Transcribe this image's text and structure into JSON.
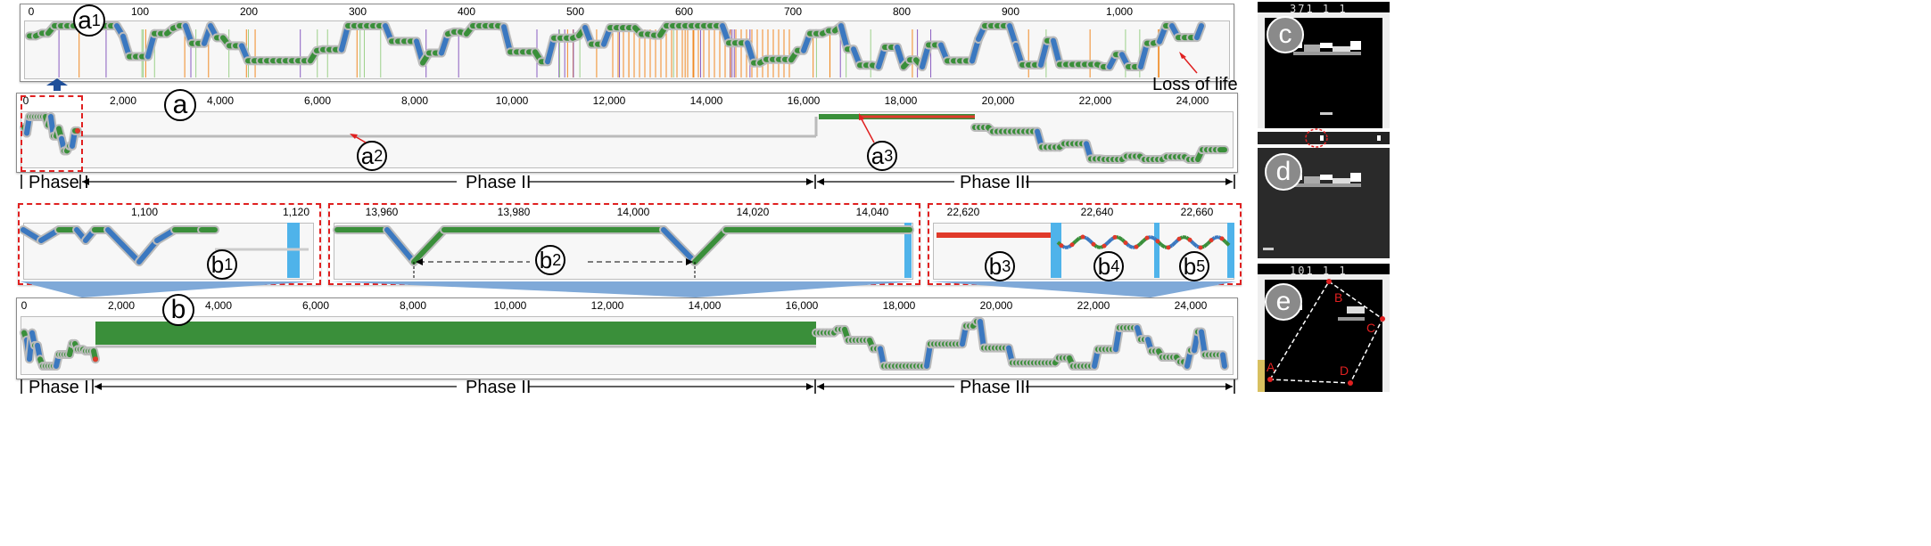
{
  "panel_a1": {
    "label": "a",
    "sub": "1",
    "ticks": [
      "0",
      "100",
      "200",
      "300",
      "400",
      "500",
      "600",
      "700",
      "800",
      "900",
      "1,000"
    ],
    "annotation": "Loss of life"
  },
  "panel_a": {
    "label": "a",
    "ticks": [
      "0",
      "2,000",
      "4,000",
      "6,000",
      "8,000",
      "10,000",
      "12,000",
      "14,000",
      "16,000",
      "18,000",
      "20,000",
      "22,000",
      "24,000"
    ],
    "a2": {
      "label": "a",
      "sub": "2"
    },
    "a3": {
      "label": "a",
      "sub": "3"
    }
  },
  "phases_top": {
    "phase1": "Phase I",
    "phase2": "Phase II",
    "phase3": "Phase III"
  },
  "panel_b1": {
    "label": "b",
    "sub": "1",
    "ticks": [
      "1,100",
      "1,120"
    ]
  },
  "panel_b2": {
    "label": "b",
    "sub": "2",
    "ticks": [
      "13,960",
      "13,980",
      "14,000",
      "14,020",
      "14,040"
    ]
  },
  "panel_b345": {
    "ticks": [
      "22,620",
      "22,640",
      "22,660"
    ],
    "b3": {
      "label": "b",
      "sub": "3"
    },
    "b4": {
      "label": "b",
      "sub": "4"
    },
    "b5": {
      "label": "b",
      "sub": "5"
    }
  },
  "panel_b": {
    "label": "b",
    "ticks": [
      "0",
      "2,000",
      "4,000",
      "6,000",
      "8,000",
      "10,000",
      "12,000",
      "14,000",
      "16,000",
      "18,000",
      "20,000",
      "22,000",
      "24,000"
    ]
  },
  "phases_bottom": {
    "phase1": "Phase I",
    "phase2": "Phase II",
    "phase3": "Phase III"
  },
  "game_c": {
    "label": "c",
    "score": "371 1 1"
  },
  "game_d": {
    "label": "d"
  },
  "game_e": {
    "label": "e",
    "score": "101 1 1",
    "points": [
      "A",
      "B",
      "C",
      "D"
    ]
  },
  "colors": {
    "green": "#3a8f3a",
    "blue": "#3b78c0",
    "red": "#e03a2a",
    "orange": "#f08a24",
    "purple": "#8a5cc0",
    "lightblue": "#4fb3ea"
  }
}
